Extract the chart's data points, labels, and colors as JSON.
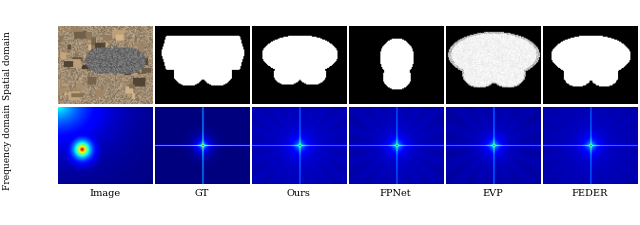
{
  "col_labels": [
    "Image",
    "GT",
    "Ours",
    "FPNet",
    "EVP",
    "FEDER"
  ],
  "row_labels": [
    "Spatial domain",
    "Frequency domain"
  ],
  "figure_width": 6.4,
  "figure_height": 2.26,
  "dpi": 100,
  "background_color": "#ffffff",
  "col_label_fontsize": 7,
  "row_label_fontsize": 6.5
}
